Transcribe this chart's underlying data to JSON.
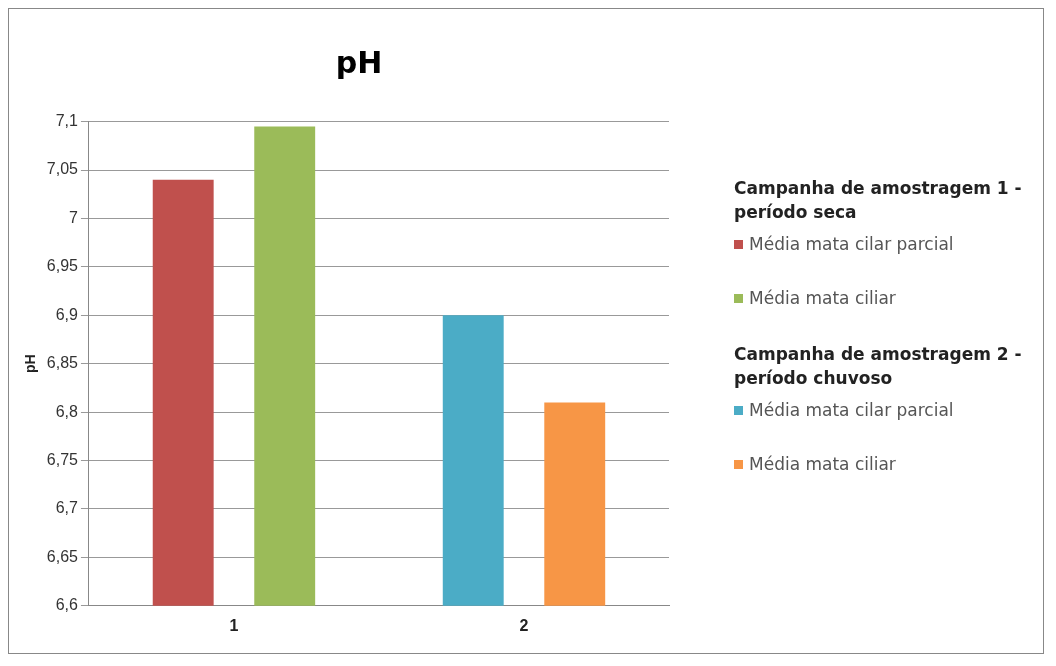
{
  "chart_data": {
    "type": "bar",
    "title": "pH",
    "ylabel": "pH",
    "categories": [
      "1",
      "2"
    ],
    "series": [
      {
        "name": "Média mata cilar parcial",
        "color": "#c0504d",
        "values": [
          7.04,
          null
        ]
      },
      {
        "name": "Média mata ciliar",
        "color": "#9bbb59",
        "values": [
          7.095,
          null
        ]
      },
      {
        "name": "Média mata cilar parcial",
        "color": "#4bacc6",
        "values": [
          null,
          6.9
        ]
      },
      {
        "name": "Média mata ciliar",
        "color": "#f79646",
        "values": [
          null,
          6.81
        ]
      }
    ],
    "annotations": [
      "Campanha de amostragem 1 - período seca",
      "Campanha de amostragem 2 - período chuvoso"
    ],
    "ylim": [
      6.6,
      7.1
    ],
    "yticks": [
      {
        "value": 6.6,
        "label": "6,6"
      },
      {
        "value": 6.65,
        "label": "6,65"
      },
      {
        "value": 6.7,
        "label": "6,7"
      },
      {
        "value": 6.75,
        "label": "6,75"
      },
      {
        "value": 6.8,
        "label": "6,8"
      },
      {
        "value": 6.85,
        "label": "6,85"
      },
      {
        "value": 6.9,
        "label": "6,9"
      },
      {
        "value": 6.95,
        "label": "6,95"
      },
      {
        "value": 7,
        "label": "7"
      },
      {
        "value": 7.05,
        "label": "7,05"
      },
      {
        "value": 7.1,
        "label": "7,1"
      }
    ],
    "grid": "y",
    "legend": "right"
  }
}
